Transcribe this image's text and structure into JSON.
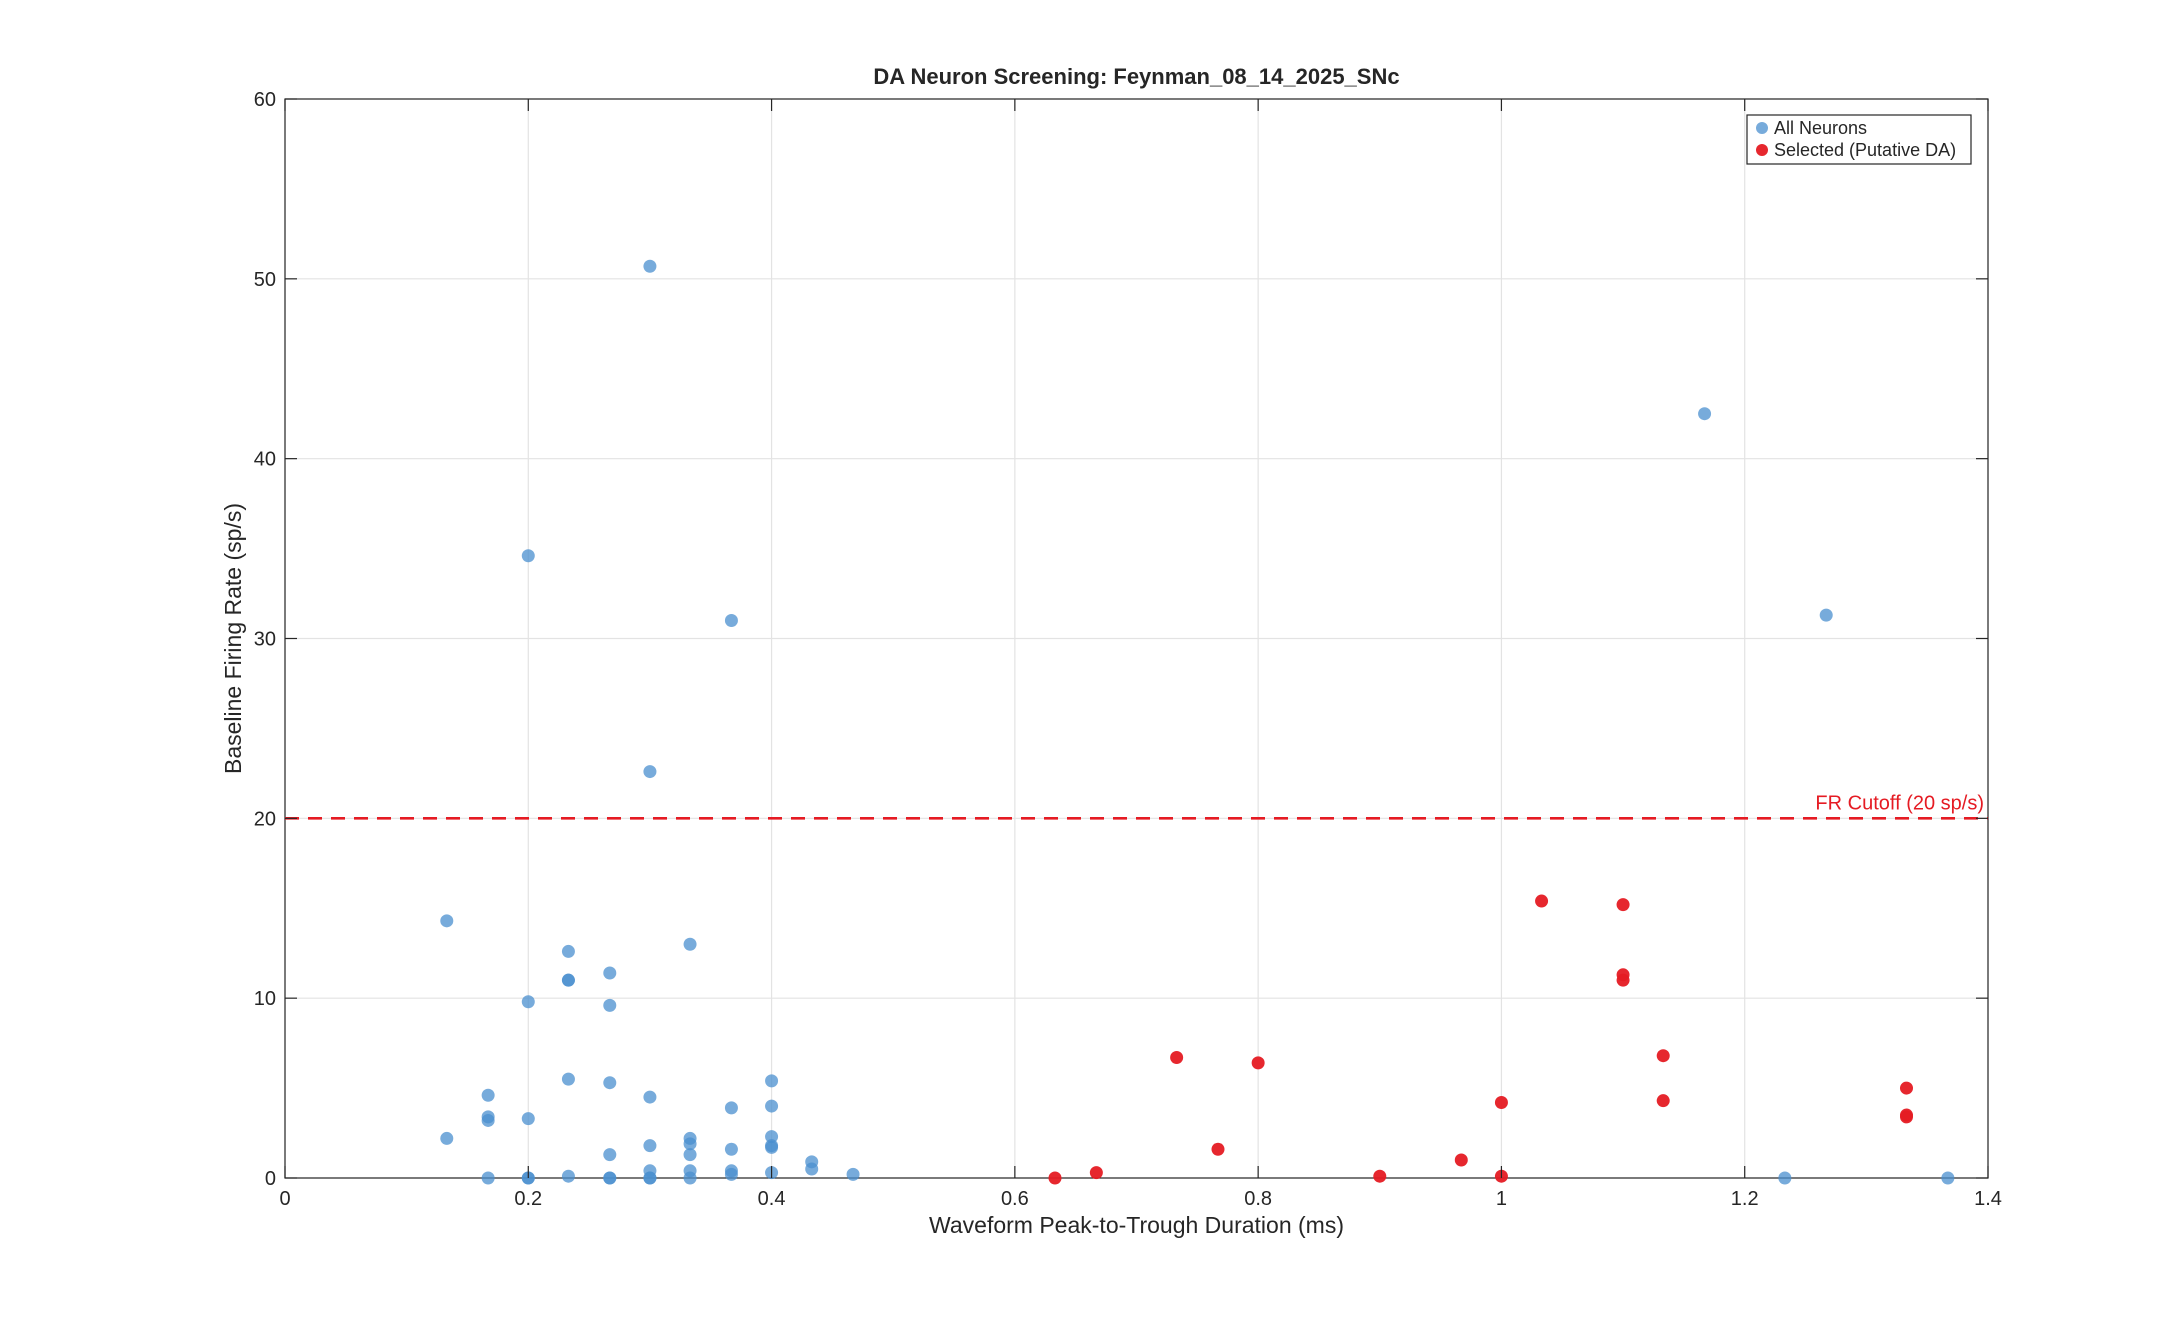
{
  "chart_data": {
    "type": "scatter",
    "title": "DA Neuron Screening: Feynman_08_14_2025_SNc",
    "xlabel": "Waveform Peak-to-Trough Duration (ms)",
    "ylabel": "Baseline Firing Rate (sp/s)",
    "xlim": [
      0,
      1.4
    ],
    "ylim": [
      0,
      60
    ],
    "xticks": [
      "0",
      "0.2",
      "0.4",
      "0.6",
      "0.8",
      "1",
      "1.2",
      "1.4"
    ],
    "yticks": [
      "0",
      "10",
      "20",
      "30",
      "40",
      "50",
      "60"
    ],
    "grid": true,
    "legend_position": "top-right",
    "colors": {
      "all": "#4a8fcf",
      "selected": "#e51b23",
      "cutoff": "#e51b23"
    },
    "cutoff": {
      "y": 20,
      "label": "FR Cutoff (20 sp/s)"
    },
    "series": [
      {
        "name": "All Neurons",
        "points": [
          [
            0.133,
            14.3
          ],
          [
            0.133,
            2.2
          ],
          [
            0.167,
            4.6
          ],
          [
            0.167,
            3.4
          ],
          [
            0.167,
            3.2
          ],
          [
            0.167,
            0.0
          ],
          [
            0.2,
            34.6
          ],
          [
            0.2,
            9.8
          ],
          [
            0.2,
            3.3
          ],
          [
            0.2,
            0.0
          ],
          [
            0.2,
            0.0
          ],
          [
            0.233,
            12.6
          ],
          [
            0.233,
            11.0
          ],
          [
            0.233,
            11.0
          ],
          [
            0.233,
            5.5
          ],
          [
            0.233,
            0.1
          ],
          [
            0.267,
            11.4
          ],
          [
            0.267,
            9.6
          ],
          [
            0.267,
            5.3
          ],
          [
            0.267,
            1.3
          ],
          [
            0.267,
            0.0
          ],
          [
            0.267,
            0.0
          ],
          [
            0.3,
            50.7
          ],
          [
            0.3,
            22.6
          ],
          [
            0.3,
            4.5
          ],
          [
            0.3,
            1.8
          ],
          [
            0.3,
            0.4
          ],
          [
            0.3,
            0.0
          ],
          [
            0.3,
            0.0
          ],
          [
            0.333,
            13.0
          ],
          [
            0.333,
            2.2
          ],
          [
            0.333,
            1.9
          ],
          [
            0.333,
            1.3
          ],
          [
            0.333,
            0.4
          ],
          [
            0.333,
            0.0
          ],
          [
            0.367,
            31.0
          ],
          [
            0.367,
            3.9
          ],
          [
            0.367,
            1.6
          ],
          [
            0.367,
            0.4
          ],
          [
            0.367,
            0.2
          ],
          [
            0.4,
            5.4
          ],
          [
            0.4,
            4.0
          ],
          [
            0.4,
            2.3
          ],
          [
            0.4,
            1.8
          ],
          [
            0.4,
            1.7
          ],
          [
            0.4,
            0.3
          ],
          [
            0.433,
            0.9
          ],
          [
            0.433,
            0.5
          ],
          [
            0.467,
            0.2
          ],
          [
            1.167,
            42.5
          ],
          [
            1.267,
            31.3
          ],
          [
            1.233,
            0.0
          ],
          [
            1.367,
            0.0
          ]
        ]
      },
      {
        "name": "Selected (Putative DA)",
        "points": [
          [
            0.633,
            0.0
          ],
          [
            0.667,
            0.3
          ],
          [
            0.733,
            6.7
          ],
          [
            0.767,
            1.6
          ],
          [
            0.8,
            6.4
          ],
          [
            0.9,
            0.1
          ],
          [
            0.967,
            1.0
          ],
          [
            1.0,
            4.2
          ],
          [
            1.0,
            0.1
          ],
          [
            1.033,
            15.4
          ],
          [
            1.1,
            15.2
          ],
          [
            1.1,
            11.3
          ],
          [
            1.1,
            11.0
          ],
          [
            1.133,
            6.8
          ],
          [
            1.133,
            4.3
          ],
          [
            1.333,
            5.0
          ],
          [
            1.333,
            3.5
          ],
          [
            1.333,
            3.4
          ]
        ]
      }
    ]
  }
}
